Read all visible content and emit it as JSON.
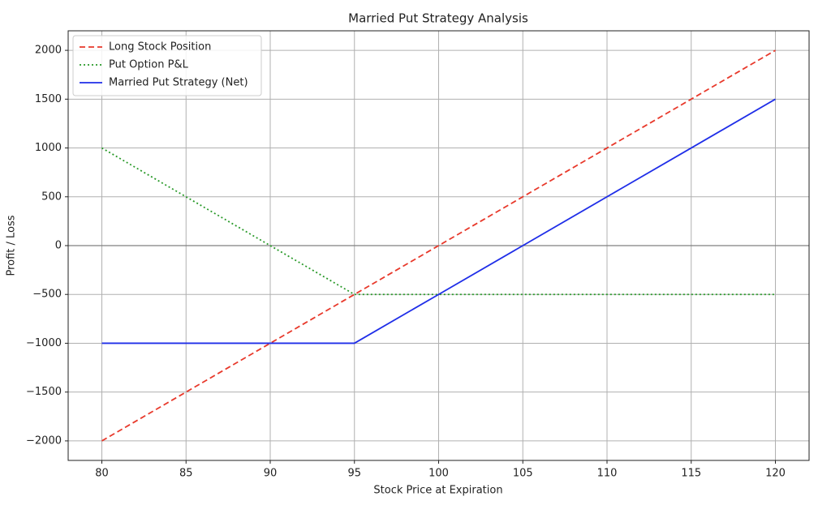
{
  "chart_data": {
    "type": "line",
    "title": "Married Put Strategy Analysis",
    "x_label": "Stock Price at Expiration",
    "y_label": "Profit / Loss",
    "x": [
      80,
      85,
      90,
      95,
      100,
      105,
      110,
      115,
      120
    ],
    "series": [
      {
        "name": "Long Stock Position",
        "color": "#e8392b",
        "style": "dashed",
        "values": [
          -2000,
          -1500,
          -1000,
          -500,
          0,
          500,
          1000,
          1500,
          2000
        ]
      },
      {
        "name": "Put Option P&L",
        "color": "#2a9a2a",
        "style": "dotted",
        "values": [
          1000,
          500,
          0,
          -500,
          -500,
          -500,
          -500,
          -500,
          -500
        ]
      },
      {
        "name": "Married Put Strategy (Net)",
        "color": "#1f2ee8",
        "style": "solid",
        "values": [
          -1000,
          -1000,
          -1000,
          -1000,
          -500,
          0,
          500,
          1000,
          1500
        ]
      }
    ],
    "xlim": [
      78,
      122
    ],
    "ylim": [
      -2200,
      2200
    ],
    "xticks": [
      80,
      85,
      90,
      95,
      100,
      105,
      110,
      115,
      120
    ],
    "yticks": [
      {
        "value": -2000,
        "label": "−2000"
      },
      {
        "value": -1500,
        "label": "−1500"
      },
      {
        "value": -1000,
        "label": "−1000"
      },
      {
        "value": -500,
        "label": "−500"
      },
      0,
      500,
      1000,
      1500,
      2000
    ],
    "hline": 0,
    "grid": true,
    "legend": "upper-left"
  }
}
